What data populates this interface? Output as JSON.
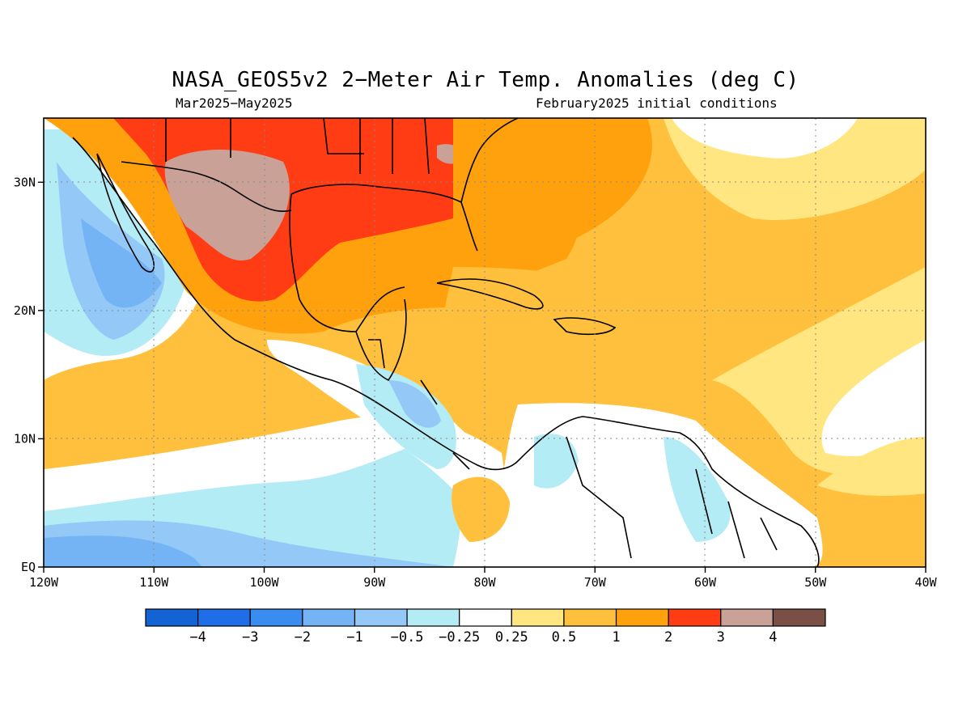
{
  "title": "NASA_GEOS5v2 2−Meter Air Temp. Anomalies (deg C)",
  "subtitle_left": "Mar2025−May2025",
  "subtitle_right": "February2025 initial conditions",
  "map": {
    "lon_range": [
      -120,
      -40
    ],
    "lat_range": [
      0,
      35
    ],
    "lon_ticks": [
      {
        "v": -120,
        "label": "120W"
      },
      {
        "v": -110,
        "label": "110W"
      },
      {
        "v": -100,
        "label": "100W"
      },
      {
        "v": -90,
        "label": "90W"
      },
      {
        "v": -80,
        "label": "80W"
      },
      {
        "v": -70,
        "label": "70W"
      },
      {
        "v": -60,
        "label": "60W"
      },
      {
        "v": -50,
        "label": "50W"
      },
      {
        "v": -40,
        "label": "40W"
      }
    ],
    "lat_ticks": [
      {
        "v": 0,
        "label": "EQ"
      },
      {
        "v": 10,
        "label": "10N"
      },
      {
        "v": 20,
        "label": "20N"
      },
      {
        "v": 30,
        "label": "30N"
      }
    ]
  },
  "colorbar": {
    "colors": [
      "#1463d4",
      "#1f6ee8",
      "#3a8df0",
      "#74b4f5",
      "#94c9f7",
      "#b4ecf6",
      "#ffffff",
      "#ffe680",
      "#ffc13d",
      "#ffa10c",
      "#ff3c13",
      "#c9a197",
      "#7a5046"
    ],
    "labels": [
      "−4",
      "−3",
      "−2",
      "−1",
      "−0.5",
      "−0.25",
      "0.25",
      "0.5",
      "1",
      "2",
      "3",
      "4"
    ]
  }
}
